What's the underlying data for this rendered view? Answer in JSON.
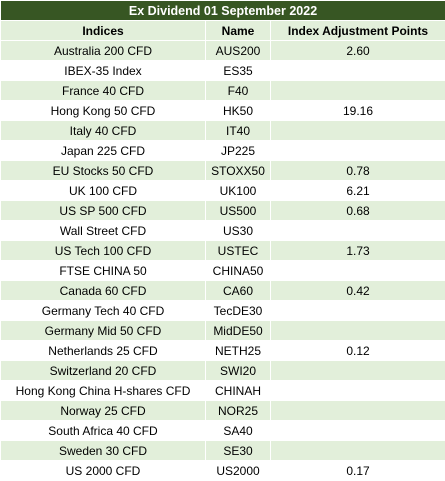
{
  "title": "Ex Dividend 01 September 2022",
  "headers": {
    "indices": "Indices",
    "name": "Name",
    "points": "Index Adjustment Points"
  },
  "rows": [
    {
      "index": "Australia 200 CFD",
      "name": "AUS200",
      "points": "2.60"
    },
    {
      "index": "IBEX-35 Index",
      "name": "ES35",
      "points": ""
    },
    {
      "index": "France 40 CFD",
      "name": "F40",
      "points": ""
    },
    {
      "index": "Hong Kong 50 CFD",
      "name": "HK50",
      "points": "19.16"
    },
    {
      "index": "Italy 40 CFD",
      "name": "IT40",
      "points": ""
    },
    {
      "index": "Japan 225 CFD",
      "name": "JP225",
      "points": ""
    },
    {
      "index": "EU Stocks 50 CFD",
      "name": "STOXX50",
      "points": "0.78"
    },
    {
      "index": "UK 100 CFD",
      "name": "UK100",
      "points": "6.21"
    },
    {
      "index": "US SP 500 CFD",
      "name": "US500",
      "points": "0.68"
    },
    {
      "index": "Wall Street CFD",
      "name": "US30",
      "points": ""
    },
    {
      "index": "US Tech 100 CFD",
      "name": "USTEC",
      "points": "1.73"
    },
    {
      "index": "FTSE CHINA 50",
      "name": "CHINA50",
      "points": ""
    },
    {
      "index": "Canada 60 CFD",
      "name": "CA60",
      "points": "0.42"
    },
    {
      "index": "Germany Tech 40 CFD",
      "name": "TecDE30",
      "points": ""
    },
    {
      "index": "Germany Mid 50 CFD",
      "name": "MidDE50",
      "points": ""
    },
    {
      "index": "Netherlands 25 CFD",
      "name": "NETH25",
      "points": "0.12"
    },
    {
      "index": "Switzerland 20 CFD",
      "name": "SWI20",
      "points": ""
    },
    {
      "index": "Hong Kong China H-shares CFD",
      "name": "CHINAH",
      "points": ""
    },
    {
      "index": "Norway 25 CFD",
      "name": "NOR25",
      "points": ""
    },
    {
      "index": "South Africa 40 CFD",
      "name": "SA40",
      "points": ""
    },
    {
      "index": "Sweden 30 CFD",
      "name": "SE30",
      "points": ""
    },
    {
      "index": "US 2000 CFD",
      "name": "US2000",
      "points": "0.17"
    }
  ],
  "colors": {
    "title_bg": "#375623",
    "title_fg": "#ffffff",
    "band": "#e2efda",
    "plain": "#ffffff"
  }
}
